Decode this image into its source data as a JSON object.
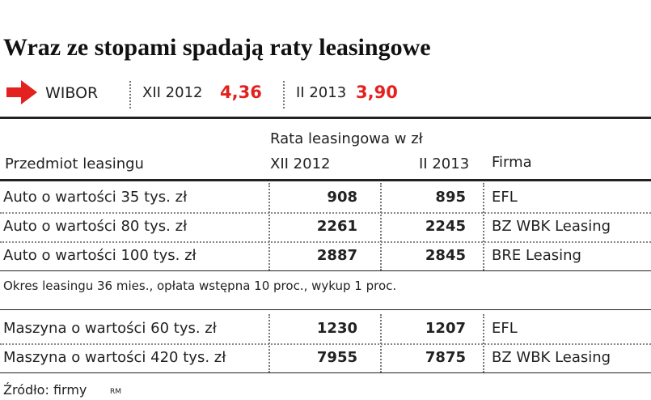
{
  "header": {
    "title": "Wraz ze stopami spadają raty leasingowe",
    "wibor": {
      "label": "WIBOR",
      "period1": "XII 2012",
      "value1": "4,36",
      "period2": "II 2013",
      "value2": "3,90"
    }
  },
  "table": {
    "group_header": "Rata leasingowa w zł",
    "columns": [
      "Przedmiot leasingu",
      "XII 2012",
      "II 2013",
      "Firma"
    ],
    "sections": [
      {
        "rows": [
          [
            "Auto o wartości 35 tys. zł",
            "908",
            "895",
            "EFL"
          ],
          [
            "Auto o wartości 80 tys. zł",
            "2261",
            "2245",
            "BZ WBK Leasing"
          ],
          [
            "Auto o wartości 100 tys. zł",
            "2887",
            "2845",
            "BRE Leasing"
          ]
        ],
        "note": "Okres leasingu 36 mies., opłata wstępna 10 proc., wykup 1 proc."
      },
      {
        "rows": [
          [
            "Maszyna o wartości 60 tys. zł",
            "1230",
            "1207",
            "EFL"
          ],
          [
            "Maszyna o wartości 420 tys. zł",
            "7955",
            "7875",
            "BZ WBK Leasing"
          ]
        ]
      }
    ]
  },
  "footer": {
    "source": "Źródło: firmy",
    "author": "RM"
  }
}
